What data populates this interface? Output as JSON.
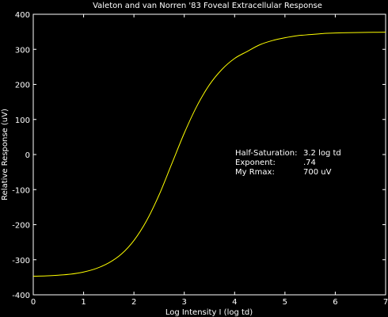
{
  "chart_data": {
    "type": "line",
    "title": "Valeton and van Norren '83 Foveal Extracellular Response",
    "xlabel": "Log Intensity I (log td)",
    "ylabel": "Relative Response (uV)",
    "xlim": [
      0,
      7
    ],
    "ylim": [
      -400,
      400
    ],
    "xticks": [
      0,
      1,
      2,
      3,
      4,
      5,
      6,
      7
    ],
    "yticks": [
      -400,
      -300,
      -200,
      -100,
      0,
      100,
      200,
      300,
      400
    ],
    "grid": false,
    "colors": {
      "background": "#000000",
      "axes": "#ffffff",
      "line": "#ffff00",
      "text": "#ffffff"
    },
    "series": [
      {
        "x": [
          0,
          0.25,
          0.5,
          0.75,
          1,
          1.25,
          1.5,
          1.75,
          2,
          2.25,
          2.5,
          2.75,
          3,
          3.25,
          3.5,
          3.75,
          4,
          4.25,
          4.5,
          4.75,
          5,
          5.25,
          5.5,
          5.75,
          6,
          6.25,
          6.5,
          6.75,
          7
        ],
        "y": [
          -347,
          -346,
          -344,
          -341,
          -335,
          -325,
          -309,
          -284,
          -245,
          -189,
          -115,
          -27,
          61,
          138,
          199,
          243,
          274,
          294,
          313,
          325,
          333,
          339,
          342,
          345,
          346.5,
          347.5,
          348,
          348.5,
          349
        ]
      }
    ],
    "annotations": [
      {
        "label": "Half-Saturation:",
        "value": "3.2 log td"
      },
      {
        "label": "Exponent:",
        "value": ".74"
      },
      {
        "label": "My Rmax:",
        "value": "700 uV"
      }
    ]
  }
}
